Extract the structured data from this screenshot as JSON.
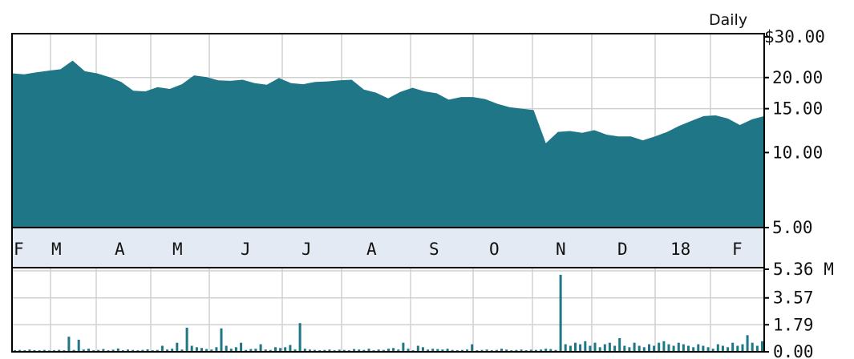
{
  "chart_data": [
    {
      "type": "area",
      "title": "Daily",
      "y_scale": "log",
      "ylim": [
        5.0,
        30.0
      ],
      "y_ticks": [
        "$30.00",
        "20.00",
        "15.00",
        "10.00",
        "5.00"
      ],
      "y_tick_values": [
        30,
        20,
        15,
        10,
        5
      ],
      "x_tick_labels": [
        "F",
        "M",
        "A",
        "M",
        "J",
        "J",
        "A",
        "S",
        "O",
        "N",
        "D",
        "18",
        "F"
      ],
      "grid": true,
      "fill_color": "#1F7686",
      "band_color": "#E4EAF3",
      "series": [
        {
          "x": [
            "Feb 2017",
            "Feb 2017",
            "Mar 2017",
            "Mar 2017",
            "Mar 2017",
            "Mar 2017",
            "Mar 2017",
            "Mar 2017",
            "Mar 2017",
            "Mar 2017",
            "Apr 2017",
            "Apr 2017",
            "Apr 2017",
            "Apr 2017",
            "Apr 2017",
            "May 2017",
            "May 2017",
            "May 2017",
            "May 2017",
            "May 2017",
            "Jun 2017",
            "Jun 2017",
            "Jun 2017",
            "Jun 2017",
            "Jun 2017",
            "Jul 2017",
            "Jul 2017",
            "Jul 2017",
            "Jul 2017",
            "Aug 2017",
            "Aug 2017",
            "Aug 2017",
            "Aug 2017",
            "Aug 2017",
            "Sep 2017",
            "Sep 2017",
            "Sep 2017",
            "Sep 2017",
            "Sep 2017",
            "Oct 2017",
            "Oct 2017",
            "Oct 2017",
            "Oct 2017",
            "Oct 2017",
            "Oct 2017",
            "Nov 2017",
            "Nov 2017",
            "Nov 2017",
            "Nov 2017",
            "Nov 2017",
            "Dec 2017",
            "Dec 2017",
            "Dec 2017",
            "Dec 2017",
            "Dec 2017",
            "Jan 2018",
            "Jan 2018",
            "Jan 2018",
            "Jan 2018",
            "Feb 2018",
            "Feb 2018",
            "Feb 2018",
            "Feb 2018"
          ],
          "values": [
            20.8,
            20.6,
            21.0,
            21.3,
            21.6,
            23.4,
            21.2,
            20.8,
            20.1,
            19.2,
            17.7,
            17.6,
            18.3,
            18.0,
            18.8,
            20.4,
            20.1,
            19.5,
            19.4,
            19.6,
            19.0,
            18.7,
            19.9,
            19.0,
            18.8,
            19.2,
            19.3,
            19.5,
            19.6,
            17.9,
            17.4,
            16.5,
            17.5,
            18.2,
            17.6,
            17.3,
            16.3,
            16.7,
            16.7,
            16.4,
            15.7,
            15.2,
            15.0,
            14.8,
            10.9,
            12.1,
            12.2,
            12.0,
            12.3,
            11.8,
            11.6,
            11.6,
            11.2,
            11.6,
            12.1,
            12.8,
            13.4,
            14.0,
            14.1,
            13.7,
            12.9,
            13.6,
            14.0
          ]
        }
      ]
    },
    {
      "type": "bar",
      "title": "",
      "ylabel": "",
      "ylim": [
        0,
        5.36
      ],
      "y_ticks": [
        "5.36 M",
        "3.57",
        "1.79",
        "0.00"
      ],
      "y_tick_values": [
        5.36,
        3.57,
        1.79,
        0.0
      ],
      "grid": true,
      "bar_color": "#1F7686",
      "series": [
        {
          "values": [
            0.1,
            0.12,
            0.1,
            0.15,
            0.11,
            0.1,
            0.12,
            0.09,
            0.1,
            0.13,
            0.1,
            1.0,
            0.12,
            0.8,
            0.15,
            0.2,
            0.1,
            0.12,
            0.18,
            0.1,
            0.14,
            0.22,
            0.1,
            0.15,
            0.12,
            0.1,
            0.12,
            0.16,
            0.1,
            0.12,
            0.4,
            0.15,
            0.2,
            0.6,
            0.15,
            1.6,
            0.4,
            0.3,
            0.25,
            0.18,
            0.15,
            0.3,
            1.55,
            0.4,
            0.2,
            0.3,
            0.6,
            0.12,
            0.18,
            0.2,
            0.5,
            0.15,
            0.12,
            0.3,
            0.25,
            0.3,
            0.45,
            0.15,
            1.9,
            0.2,
            0.15,
            0.12,
            0.1,
            0.12,
            0.15,
            0.1,
            0.14,
            0.12,
            0.1,
            0.18,
            0.15,
            0.12,
            0.2,
            0.1,
            0.15,
            0.12,
            0.2,
            0.25,
            0.15,
            0.6,
            0.2,
            0.1,
            0.4,
            0.3,
            0.15,
            0.2,
            0.18,
            0.15,
            0.2,
            0.12,
            0.1,
            0.12,
            0.15,
            0.5,
            0.1,
            0.12,
            0.15,
            0.1,
            0.12,
            0.2,
            0.15,
            0.1,
            0.12,
            0.15,
            0.1,
            0.14,
            0.12,
            0.15,
            0.2,
            0.18,
            0.12,
            5.1,
            0.5,
            0.4,
            0.6,
            0.5,
            0.7,
            0.4,
            0.6,
            0.3,
            0.5,
            0.6,
            0.4,
            0.9,
            0.4,
            0.3,
            0.6,
            0.4,
            0.3,
            0.5,
            0.4,
            0.6,
            0.7,
            0.5,
            0.4,
            0.6,
            0.5,
            0.4,
            0.3,
            0.5,
            0.4,
            0.3,
            0.2,
            0.5,
            0.4,
            0.3,
            0.6,
            0.4,
            0.5,
            1.1,
            0.6,
            0.4,
            0.7
          ]
        }
      ]
    }
  ]
}
